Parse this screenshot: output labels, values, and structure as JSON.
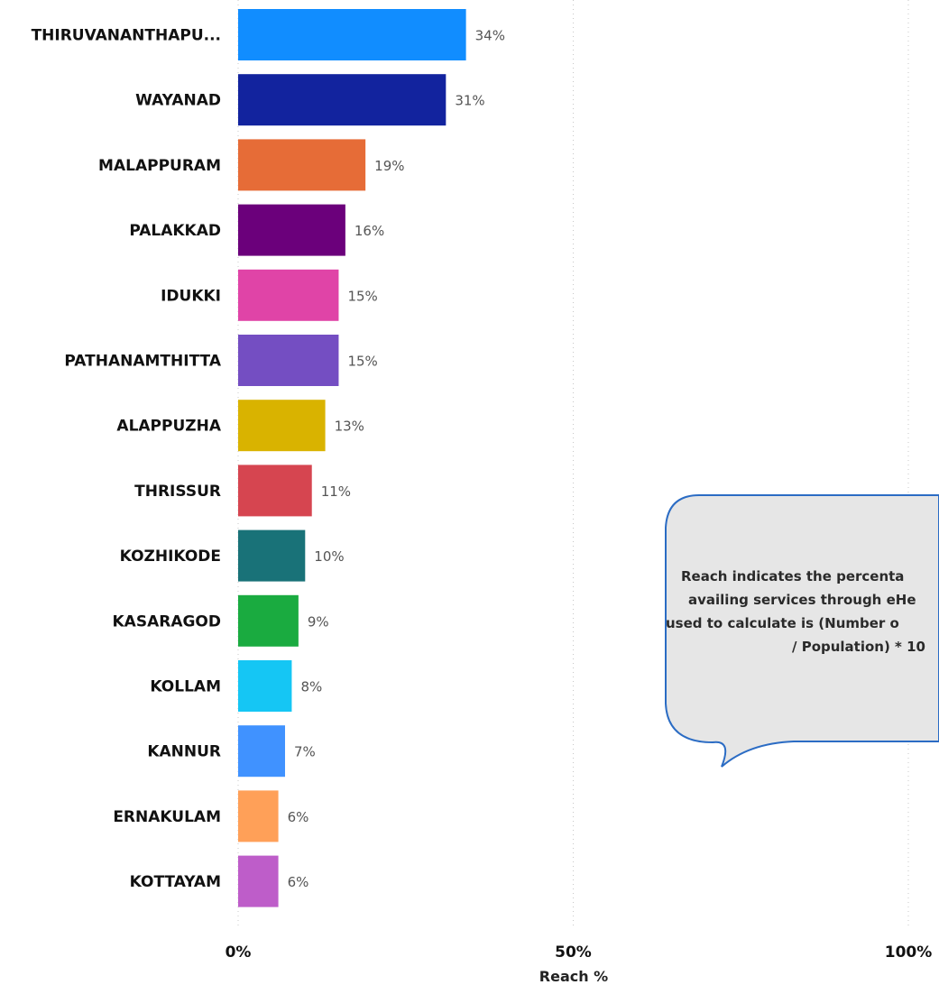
{
  "chart_data": {
    "type": "bar",
    "orientation": "horizontal",
    "categories": [
      "THIRUVANANTHAPU...",
      "WAYANAD",
      "MALAPPURAM",
      "PALAKKAD",
      "IDUKKI",
      "PATHANAMTHITTA",
      "ALAPPUZHA",
      "THRISSUR",
      "KOZHIKODE",
      "KASARAGOD",
      "KOLLAM",
      "KANNUR",
      "ERNAKULAM",
      "KOTTAYAM"
    ],
    "values": [
      34,
      31,
      19,
      16,
      15,
      15,
      13,
      11,
      10,
      9,
      8,
      7,
      6,
      6
    ],
    "value_labels": [
      "34%",
      "31%",
      "19%",
      "16%",
      "15%",
      "15%",
      "13%",
      "11%",
      "10%",
      "9%",
      "8%",
      "7%",
      "6%",
      "6%"
    ],
    "colors": [
      "#118DFF",
      "#12239E",
      "#E66C37",
      "#6B007B",
      "#E044A7",
      "#744EC2",
      "#D9B300",
      "#D64550",
      "#197278",
      "#1AAB40",
      "#15C6F4",
      "#4092FF",
      "#FFA058",
      "#BE5DC9"
    ],
    "xlabel": "Reach %",
    "ylabel": "",
    "xlim": [
      0,
      100
    ],
    "xticks": [
      0,
      50,
      100
    ],
    "xtick_labels": [
      "0%",
      "50%",
      "100%"
    ],
    "grid": "vertical-dotted",
    "legend": "none"
  },
  "callout": {
    "lines": [
      "Reach indicates the percenta",
      "availing services through eHe",
      "used to calculate is (Number o",
      "/ Population) * 10"
    ]
  }
}
